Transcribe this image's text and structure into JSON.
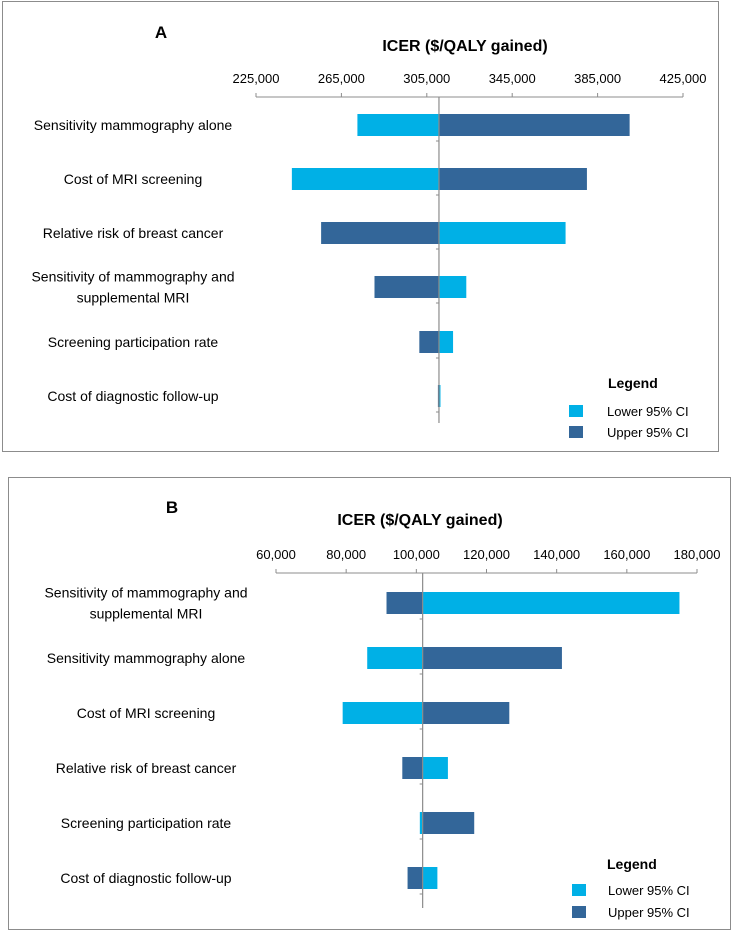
{
  "chart_data": [
    {
      "type": "bar",
      "subtype": "tornado",
      "panel_label": "A",
      "title": "ICER ($/QALY gained)",
      "baseline": 310700,
      "xlim": [
        225000,
        425000
      ],
      "xticks": [
        225000,
        265000,
        305000,
        345000,
        385000,
        425000
      ],
      "xtick_labels": [
        "225,000",
        "265,000",
        "305,000",
        "345,000",
        "385,000",
        "425,000"
      ],
      "categories": [
        "Sensitivity mammography alone",
        "Cost of MRI screening",
        "Relative risk of breast cancer",
        "Sensitivity of mammography and supplemental MRI",
        "Screening participation rate",
        "Cost of diagnostic follow-up"
      ],
      "category_lines": [
        [
          "Sensitivity mammography alone"
        ],
        [
          "Cost of MRI screening"
        ],
        [
          "Relative risk of breast cancer"
        ],
        [
          "Sensitivity of mammography and",
          "supplemental MRI"
        ],
        [
          "Screening participation rate"
        ],
        [
          "Cost of diagnostic follow-up"
        ]
      ],
      "series": [
        {
          "name": "Lower 95% CI",
          "color": "#00b0e6",
          "values": [
            272500,
            241800,
            370000,
            323500,
            317300,
            311000
          ]
        },
        {
          "name": "Upper 95% CI",
          "color": "#336699",
          "values": [
            400000,
            380000,
            255500,
            280500,
            301500,
            310200
          ]
        }
      ],
      "legend": {
        "title": "Legend",
        "position": "bottom-right",
        "items": [
          "Lower 95% CI",
          "Upper 95% CI"
        ]
      }
    },
    {
      "type": "bar",
      "subtype": "tornado",
      "panel_label": "B",
      "title": "ICER ($/QALY gained)",
      "baseline": 101800,
      "xlim": [
        60000,
        180000
      ],
      "xticks": [
        60000,
        80000,
        100000,
        120000,
        140000,
        160000,
        180000
      ],
      "xtick_labels": [
        "60,000",
        "80,000",
        "100,000",
        "120,000",
        "140,000",
        "160,000",
        "180,000"
      ],
      "categories": [
        "Sensitivity of mammography and supplemental MRI",
        "Sensitivity mammography alone",
        "Cost of MRI screening",
        "Relative risk of breast cancer",
        "Screening participation rate",
        "Cost of diagnostic follow-up"
      ],
      "category_lines": [
        [
          "Sensitivity of mammography and",
          "supplemental MRI"
        ],
        [
          "Sensitivity mammography alone"
        ],
        [
          "Cost of MRI screening"
        ],
        [
          "Relative risk of breast cancer"
        ],
        [
          "Screening participation rate"
        ],
        [
          "Cost of diagnostic follow-up"
        ]
      ],
      "series": [
        {
          "name": "Lower 95% CI",
          "color": "#00b0e6",
          "values": [
            175000,
            86000,
            79000,
            109000,
            101000,
            106000
          ]
        },
        {
          "name": "Upper 95% CI",
          "color": "#336699",
          "values": [
            91500,
            141500,
            126500,
            96000,
            116500,
            97500
          ]
        }
      ],
      "legend": {
        "title": "Legend",
        "position": "bottom-right",
        "items": [
          "Lower 95% CI",
          "Upper 95% CI"
        ]
      }
    }
  ]
}
